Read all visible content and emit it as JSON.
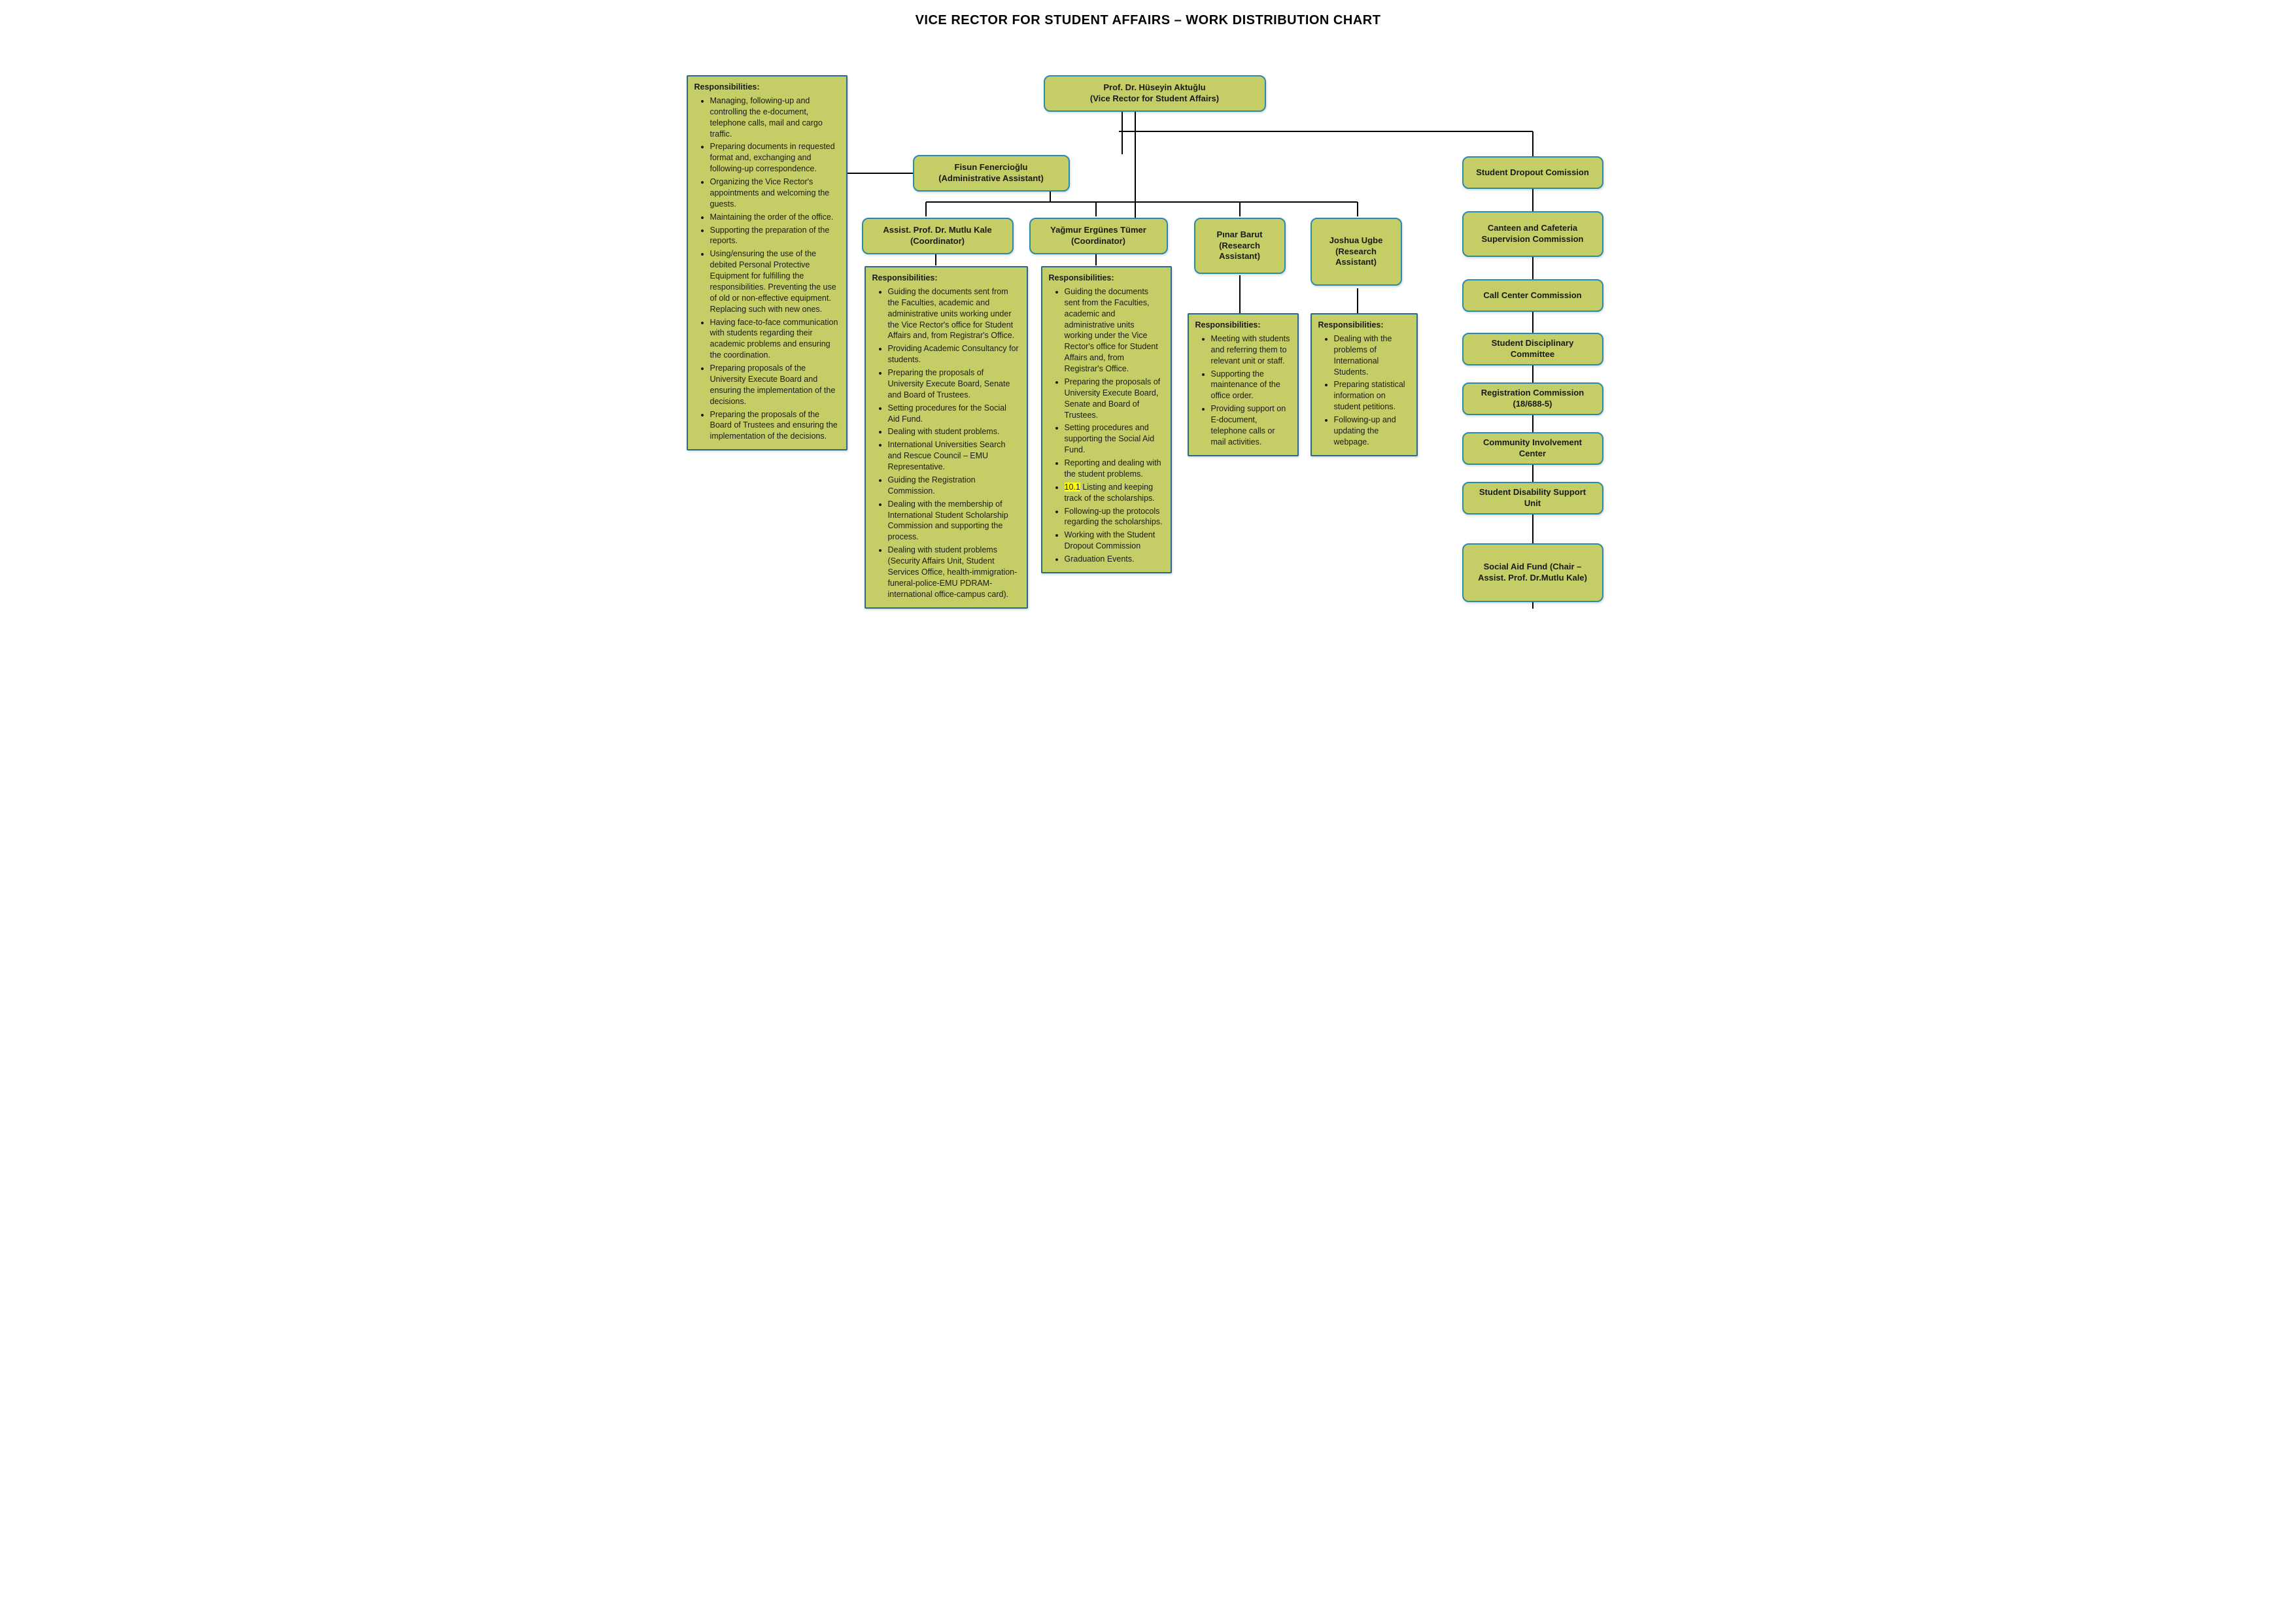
{
  "title": "VICE RECTOR FOR STUDENT AFFAIRS – WORK DISTRIBUTION CHART",
  "colors": {
    "node_bg": "#c4cd66",
    "node_border": "#2a8aa8",
    "resp_border": "#2a6a88",
    "line": "#000000",
    "highlight": "#ffff00"
  },
  "nodes": {
    "viceRector": {
      "name": "Prof. Dr. Hüseyin Aktuğlu",
      "role": "(Vice Rector for Student Affairs)"
    },
    "admin": {
      "name": "Fisun Fenercioğlu",
      "role": "(Administrative Assistant)"
    },
    "coord1": {
      "name": "Assist. Prof. Dr. Mutlu Kale",
      "role": "(Coordinator)"
    },
    "coord2": {
      "name": "Yağmur Ergünes Tümer",
      "role": "(Coordinator)"
    },
    "ra1": {
      "name": "Pınar Barut",
      "role": "(Research Assistant)"
    },
    "ra2": {
      "name": "Joshua Ugbe",
      "role": "(Research Assistant)"
    }
  },
  "commissions": {
    "c1": "Student Dropout Comission",
    "c2": "Canteen and Cafeteria Supervision Commission",
    "c3": "Call Center Commission",
    "c4": "Student Disciplinary Committee",
    "c5": "Registration Commission (18/688-5)",
    "c6": "Community Involvement Center",
    "c7": "Student Disability Support Unit",
    "c8": "Social Aid Fund (Chair – Assist. Prof. Dr.Mutlu Kale)"
  },
  "responsibilities": {
    "admin": {
      "header": "Responsibilities:",
      "items": [
        "Managing, following-up and controlling the e-document, telephone calls, mail and cargo traffic.",
        "Preparing documents in requested format and, exchanging and following-up correspondence.",
        "Organizing the Vice Rector's appointments and welcoming the guests.",
        " Maintaining the order of the office.",
        " Supporting the preparation of the reports.",
        "Using/ensuring the use of the debited Personal Protective Equipment for fulfilling the responsibilities. Preventing the use of old or non-effective equipment. Replacing such with new ones.",
        "Having face-to-face communication with students regarding their academic problems and ensuring the coordination.",
        "Preparing proposals of the University Execute Board and ensuring the implementation of the decisions.",
        "Preparing the proposals of the Board of Trustees and ensuring the implementation of the decisions."
      ]
    },
    "coord1": {
      "header": "Responsibilities:",
      "items": [
        "Guiding the documents sent from the Faculties, academic and administrative units working under the Vice Rector's office for Student Affairs and, from Registrar's Office.",
        "Providing Academic Consultancy for students.",
        "Preparing the proposals of University Execute Board, Senate and Board of Trustees.",
        "Setting procedures for the Social Aid Fund.",
        "Dealing with student problems.",
        "International Universities Search and Rescue Council – EMU Representative.",
        "Guiding the Registration Commission.",
        "Dealing with the membership of International Student Scholarship Commission and supporting the process.",
        "Dealing with student problems (Security Affairs Unit, Student Services Office, health-immigration-funeral-police-EMU PDRAM-international office-campus card)."
      ]
    },
    "coord2": {
      "header": "Responsibilities:",
      "items": [
        {
          "text": "Guiding the documents sent from the Faculties, academic and administrative units working under the Vice Rector's office for Student Affairs and, from Registrar's Office."
        },
        {
          "text": "Preparing the proposals of University Execute Board, Senate and Board of Trustees."
        },
        {
          "text": "Setting procedures and supporting the Social Aid Fund."
        },
        {
          "text": "Reporting and dealing with the student problems."
        },
        {
          "prefix_highlight": "10.1",
          "text": " Listing and keeping track of the scholarships."
        },
        {
          "text": "Following-up the protocols regarding the scholarships."
        },
        {
          "text": "Working with the Student Dropout Commission"
        },
        {
          "text": "Graduation Events."
        }
      ]
    },
    "ra1": {
      "header": "Responsibilities:",
      "items": [
        "Meeting with students and referring them to relevant unit or staff.",
        "Supporting the maintenance of the office order.",
        "Providing support on E-document, telephone calls or mail activities."
      ]
    },
    "ra2": {
      "header": "Responsibilities:",
      "items": [
        "Dealing with the problems of International Students.",
        "Preparing statistical information on student petitions.",
        "Following-up and updating the webpage."
      ]
    }
  }
}
